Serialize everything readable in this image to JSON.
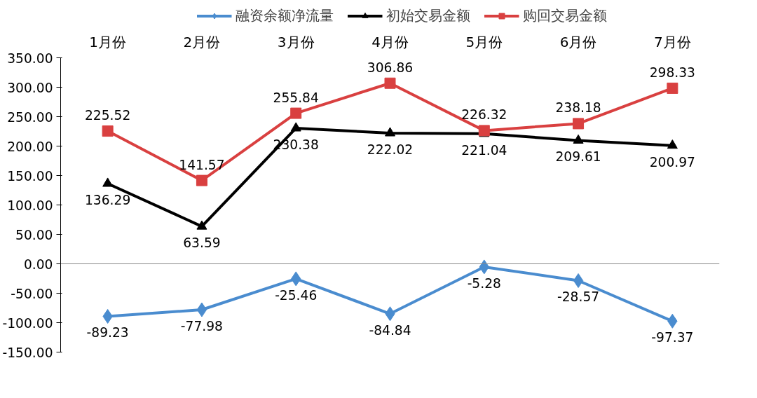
{
  "chart_data": {
    "type": "line",
    "categories": [
      "1月份",
      "2月份",
      "3月份",
      "4月份",
      "5月份",
      "6月份",
      "7月份"
    ],
    "series": [
      {
        "name": "融资余额净流量",
        "color": "#4a8ccf",
        "marker": "diamond",
        "values": [
          -89.23,
          -77.98,
          -25.46,
          -84.84,
          -5.28,
          -28.57,
          -97.37
        ]
      },
      {
        "name": "初始交易金额",
        "color": "#000000",
        "marker": "triangle",
        "values": [
          136.29,
          63.59,
          230.38,
          222.02,
          221.04,
          209.61,
          200.97
        ]
      },
      {
        "name": "购回交易金额",
        "color": "#d94040",
        "marker": "square",
        "values": [
          225.52,
          141.57,
          255.84,
          306.86,
          226.32,
          238.18,
          298.33
        ]
      }
    ],
    "ylim": [
      -150,
      350
    ],
    "yticks": [
      {
        "value": -150,
        "label": "-150.00"
      },
      {
        "value": -100,
        "label": "-100.00"
      },
      {
        "value": -50,
        "label": "-50.00"
      },
      {
        "value": 0,
        "label": "0.00"
      },
      {
        "value": 50,
        "label": "50.00"
      },
      {
        "value": 100,
        "label": "100.00"
      },
      {
        "value": 150,
        "label": "150.00"
      },
      {
        "value": 200,
        "label": "200.00"
      },
      {
        "value": 250,
        "label": "250.00"
      },
      {
        "value": 300,
        "label": "300.00"
      },
      {
        "value": 350,
        "label": "350.00"
      }
    ],
    "ref_lines": [
      {
        "axis": "y",
        "value": 0,
        "color": "#888888"
      }
    ],
    "data_labels": true,
    "legend": "top",
    "grid": false,
    "line_style": "solid"
  }
}
